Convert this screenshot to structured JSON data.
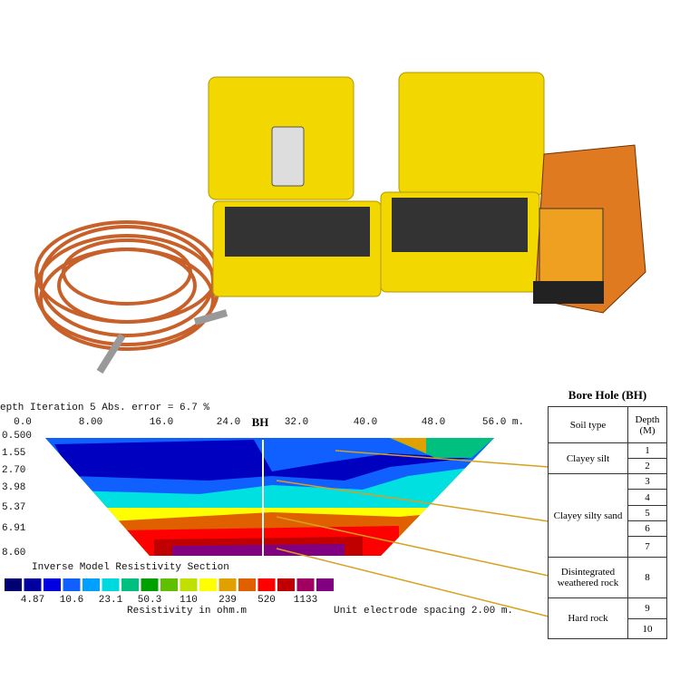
{
  "section": {
    "header": "epth  Iteration 5 Abs. error = 6.7 %",
    "x_labels": [
      "0.0",
      "8.00",
      "16.0",
      "24.0",
      "32.0",
      "40.0",
      "48.0",
      "56.0 m."
    ],
    "depth_labels": [
      "0.500",
      "1.55",
      "2.70",
      "3.98",
      "5.37",
      "6.91",
      "8.60"
    ],
    "marker": "BH",
    "title": "Inverse Model Resistivity Section",
    "scale_labels": [
      "4.87",
      "10.6",
      "23.1",
      "50.3",
      "110",
      "239",
      "520",
      "1133"
    ],
    "scale_title": "Resistivity in ohm.m",
    "spacing_note": "Unit electrode spacing 2.00 m."
  },
  "table": {
    "title": "Bore Hole (BH)",
    "columns": [
      "Soil type",
      "Depth (M)"
    ],
    "rows": [
      {
        "soil": "Clayey silt",
        "depths": [
          "1",
          "2"
        ]
      },
      {
        "soil": "Clayey silty sand",
        "depths": [
          "3",
          "4",
          "5",
          "6",
          "7"
        ]
      },
      {
        "soil": "Disintegrated weathered rock",
        "depths": [
          "8"
        ]
      },
      {
        "soil": "Hard rock",
        "depths": [
          "9",
          "10"
        ]
      }
    ]
  }
}
